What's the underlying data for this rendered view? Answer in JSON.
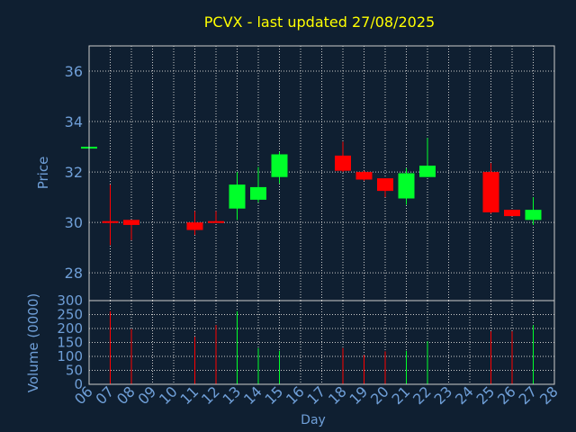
{
  "chart_data": [
    {
      "type": "candlestick",
      "title": "PCVX - last updated 27/08/2025",
      "ylabel": "Price",
      "ylim": [
        26.9,
        37.0
      ],
      "y_ticks": [
        "28",
        "30",
        "32",
        "34",
        "36"
      ],
      "grid": true,
      "up_color": "#00ff2a",
      "down_color": "#ff0000",
      "candles": [
        {
          "day": "06",
          "open": 33.0,
          "high": 33.0,
          "low": 33.0,
          "close": 33.0
        },
        {
          "day": "07",
          "open": 30.05,
          "high": 31.5,
          "low": 29.1,
          "close": 30.0
        },
        {
          "day": "08",
          "open": 30.1,
          "high": 30.1,
          "low": 29.3,
          "close": 29.9
        },
        {
          "day": "11",
          "open": 30.0,
          "high": 30.45,
          "low": 29.5,
          "close": 29.7
        },
        {
          "day": "12",
          "open": 30.05,
          "high": 30.45,
          "low": 30.0,
          "close": 30.0
        },
        {
          "day": "13",
          "open": 30.55,
          "high": 32.0,
          "low": 30.1,
          "close": 31.5
        },
        {
          "day": "14",
          "open": 30.9,
          "high": 32.2,
          "low": 30.8,
          "close": 31.4
        },
        {
          "day": "15",
          "open": 31.8,
          "high": 32.8,
          "low": 31.55,
          "close": 32.7
        },
        {
          "day": "18",
          "open": 32.65,
          "high": 33.2,
          "low": 32.0,
          "close": 32.05
        },
        {
          "day": "19",
          "open": 32.0,
          "high": 32.05,
          "low": 31.65,
          "close": 31.7
        },
        {
          "day": "20",
          "open": 31.75,
          "high": 31.75,
          "low": 31.0,
          "close": 31.25
        },
        {
          "day": "21",
          "open": 30.95,
          "high": 32.15,
          "low": 30.7,
          "close": 31.95
        },
        {
          "day": "22",
          "open": 31.8,
          "high": 33.35,
          "low": 31.8,
          "close": 32.25
        },
        {
          "day": "25",
          "open": 32.0,
          "high": 32.35,
          "low": 30.35,
          "close": 30.4
        },
        {
          "day": "26",
          "open": 30.5,
          "high": 30.5,
          "low": 30.25,
          "close": 30.25
        },
        {
          "day": "27",
          "open": 30.1,
          "high": 31.0,
          "low": 29.9,
          "close": 30.5
        }
      ]
    },
    {
      "type": "bar",
      "ylabel": "Volume (0000)",
      "xlabel": "Day",
      "ylim": [
        0,
        300
      ],
      "y_ticks": [
        "0",
        "50",
        "100",
        "150",
        "200",
        "250",
        "300"
      ],
      "x_ticks": [
        "06",
        "07",
        "08",
        "09",
        "10",
        "11",
        "12",
        "13",
        "14",
        "15",
        "16",
        "17",
        "18",
        "19",
        "20",
        "21",
        "22",
        "23",
        "24",
        "25",
        "26",
        "27",
        "28"
      ],
      "grid": true,
      "bars": [
        {
          "day": "07",
          "value": 262,
          "direction": "down"
        },
        {
          "day": "08",
          "value": 198,
          "direction": "down"
        },
        {
          "day": "11",
          "value": 170,
          "direction": "down"
        },
        {
          "day": "12",
          "value": 212,
          "direction": "down"
        },
        {
          "day": "13",
          "value": 262,
          "direction": "up"
        },
        {
          "day": "14",
          "value": 130,
          "direction": "up"
        },
        {
          "day": "15",
          "value": 120,
          "direction": "up"
        },
        {
          "day": "18",
          "value": 130,
          "direction": "down"
        },
        {
          "day": "19",
          "value": 105,
          "direction": "down"
        },
        {
          "day": "20",
          "value": 118,
          "direction": "down"
        },
        {
          "day": "21",
          "value": 120,
          "direction": "up"
        },
        {
          "day": "22",
          "value": 155,
          "direction": "up"
        },
        {
          "day": "25",
          "value": 190,
          "direction": "down"
        },
        {
          "day": "26",
          "value": 190,
          "direction": "down"
        },
        {
          "day": "27",
          "value": 212,
          "direction": "up"
        }
      ]
    }
  ],
  "colors": {
    "background": "#0f1f31",
    "title": "#ffff00",
    "axis_text": "#6f9fd8",
    "frame": "#cccccc",
    "grid": "#cccccc"
  }
}
